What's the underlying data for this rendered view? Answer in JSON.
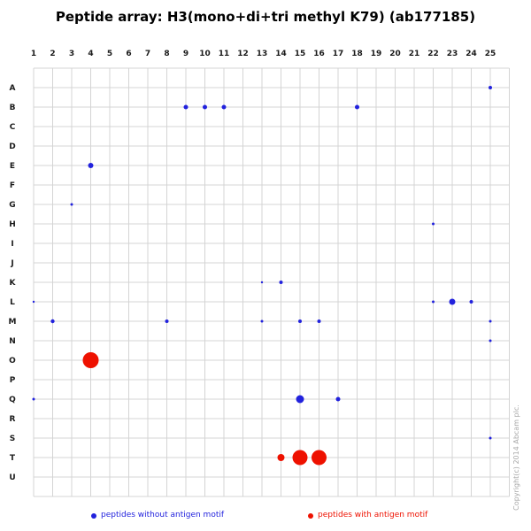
{
  "title": "Peptide array: H3(mono+di+tri methyl K79) (ab177185)",
  "copyright": "Copyright(c) 2014 Abcam plc.",
  "legend": {
    "without_motif": "peptides without antigen motif",
    "with_motif": "peptides with antigen motif"
  },
  "colors": {
    "blue": "#2222dd",
    "red": "#ee1100",
    "grid": "#d4d4d4",
    "label": "#1a1a1a",
    "copyright": "#a8a8a8"
  },
  "chart_data": {
    "type": "scatter",
    "title": "Peptide array: H3(mono+di+tri methyl K79) (ab177185)",
    "x_labels": [
      "1",
      "2",
      "3",
      "4",
      "5",
      "6",
      "7",
      "8",
      "9",
      "10",
      "11",
      "12",
      "13",
      "14",
      "15",
      "16",
      "17",
      "18",
      "19",
      "20",
      "21",
      "22",
      "23",
      "24",
      "25"
    ],
    "y_labels": [
      "A",
      "B",
      "C",
      "D",
      "E",
      "F",
      "G",
      "H",
      "I",
      "J",
      "K",
      "L",
      "M",
      "N",
      "O",
      "P",
      "Q",
      "R",
      "S",
      "T",
      "U"
    ],
    "grid": true,
    "series": [
      {
        "name": "peptides without antigen motif",
        "color_key": "blue",
        "points": [
          {
            "col": 25,
            "row": "A",
            "r": 2
          },
          {
            "col": 9,
            "row": "B",
            "r": 2.5
          },
          {
            "col": 10,
            "row": "B",
            "r": 2.5
          },
          {
            "col": 11,
            "row": "B",
            "r": 2.5
          },
          {
            "col": 18,
            "row": "B",
            "r": 2.5
          },
          {
            "col": 4,
            "row": "E",
            "r": 3
          },
          {
            "col": 3,
            "row": "G",
            "r": 1.5
          },
          {
            "col": 22,
            "row": "H",
            "r": 1.5
          },
          {
            "col": 13,
            "row": "K",
            "r": 1.2
          },
          {
            "col": 14,
            "row": "K",
            "r": 2
          },
          {
            "col": 1,
            "row": "L",
            "r": 1.2
          },
          {
            "col": 22,
            "row": "L",
            "r": 1.5
          },
          {
            "col": 23,
            "row": "L",
            "r": 3.5
          },
          {
            "col": 24,
            "row": "L",
            "r": 2
          },
          {
            "col": 2,
            "row": "M",
            "r": 2.2
          },
          {
            "col": 8,
            "row": "M",
            "r": 2
          },
          {
            "col": 13,
            "row": "M",
            "r": 1.5
          },
          {
            "col": 15,
            "row": "M",
            "r": 2
          },
          {
            "col": 16,
            "row": "M",
            "r": 2
          },
          {
            "col": 25,
            "row": "M",
            "r": 1.5
          },
          {
            "col": 25,
            "row": "N",
            "r": 1.5
          },
          {
            "col": 1,
            "row": "Q",
            "r": 1.5
          },
          {
            "col": 15,
            "row": "Q",
            "r": 4.5
          },
          {
            "col": 17,
            "row": "Q",
            "r": 2.5
          },
          {
            "col": 25,
            "row": "S",
            "r": 1.5
          }
        ]
      },
      {
        "name": "peptides with antigen motif",
        "color_key": "red",
        "points": [
          {
            "col": 4,
            "row": "O",
            "r": 9
          },
          {
            "col": 14,
            "row": "T",
            "r": 4
          },
          {
            "col": 15,
            "row": "T",
            "r": 8.5
          },
          {
            "col": 16,
            "row": "T",
            "r": 8.5
          }
        ]
      }
    ]
  }
}
